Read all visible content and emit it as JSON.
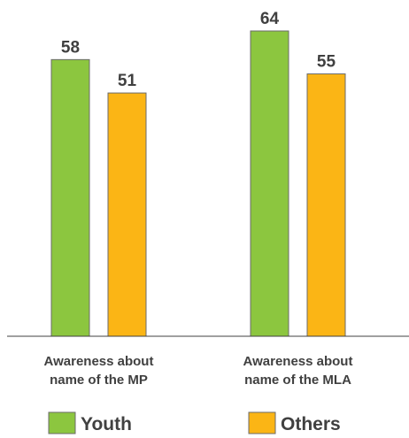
{
  "chart_data": {
    "type": "bar",
    "categories": [
      [
        "Awareness about",
        "name of the MP"
      ],
      [
        "Awareness about",
        "name of the MLA"
      ]
    ],
    "series": [
      {
        "name": "Youth",
        "values": [
          58,
          64
        ],
        "color": "#8CC63F"
      },
      {
        "name": "Others",
        "values": [
          51,
          55
        ],
        "color": "#FBB515"
      }
    ],
    "ylim": [
      0,
      70
    ],
    "grid": false,
    "legend_position": "bottom"
  }
}
